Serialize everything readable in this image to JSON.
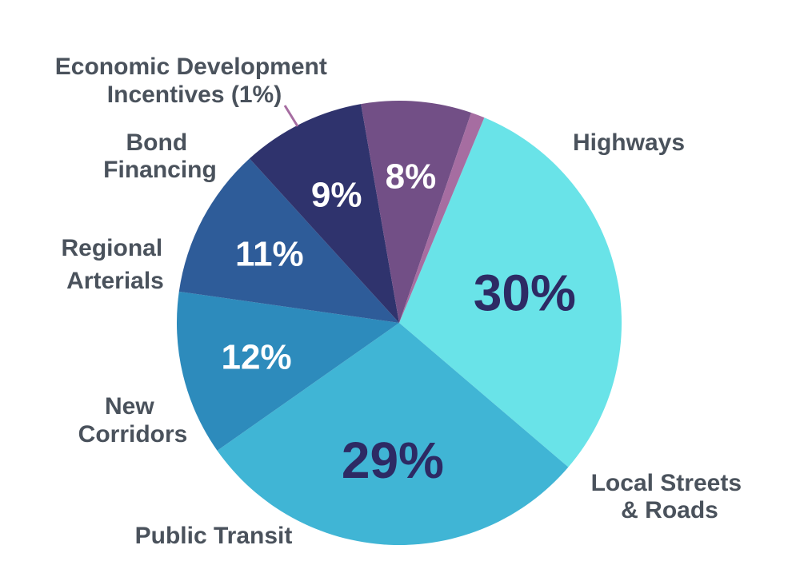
{
  "chart_data": {
    "type": "pie",
    "slices": [
      {
        "label": "Highways",
        "value": 30,
        "value_label": "30%",
        "color": "#69e3e8",
        "value_label_color": "#2d2a64"
      },
      {
        "label": "Local Streets & Roads",
        "value": 29,
        "value_label": "29%",
        "color": "#40b5d5",
        "value_label_color": "#2d2a64"
      },
      {
        "label": "Public Transit",
        "value": 12,
        "value_label": "12%",
        "color": "#2d8bbc",
        "value_label_color": "#ffffff"
      },
      {
        "label": "New Corridors",
        "value": 11,
        "value_label": "11%",
        "color": "#2e5c99",
        "value_label_color": "#ffffff"
      },
      {
        "label": "Regional Arterials",
        "value": 9,
        "value_label": "9%",
        "color": "#2f336d",
        "value_label_color": "#ffffff"
      },
      {
        "label": "Bond Financing",
        "value": 8,
        "value_label": "8%",
        "color": "#724f86",
        "value_label_color": "#ffffff"
      },
      {
        "label": "Economic Development Incentives (1%)",
        "value": 1,
        "value_label": "",
        "color": "#a66da1",
        "value_label_color": "#ffffff"
      }
    ],
    "label_text_color": "#4a525c",
    "legend": "none"
  },
  "labels": {
    "highways": [
      "Highways"
    ],
    "local_streets": [
      "Local Streets",
      "& Roads"
    ],
    "public_transit": [
      "Public Transit"
    ],
    "new_corridors": [
      "New",
      "Corridors"
    ],
    "regional_arterials": [
      "Regional",
      "Arterials"
    ],
    "bond_financing": [
      "Bond",
      "Financing"
    ],
    "economic_development": [
      "Economic Development",
      "Incentives (1%)"
    ]
  }
}
